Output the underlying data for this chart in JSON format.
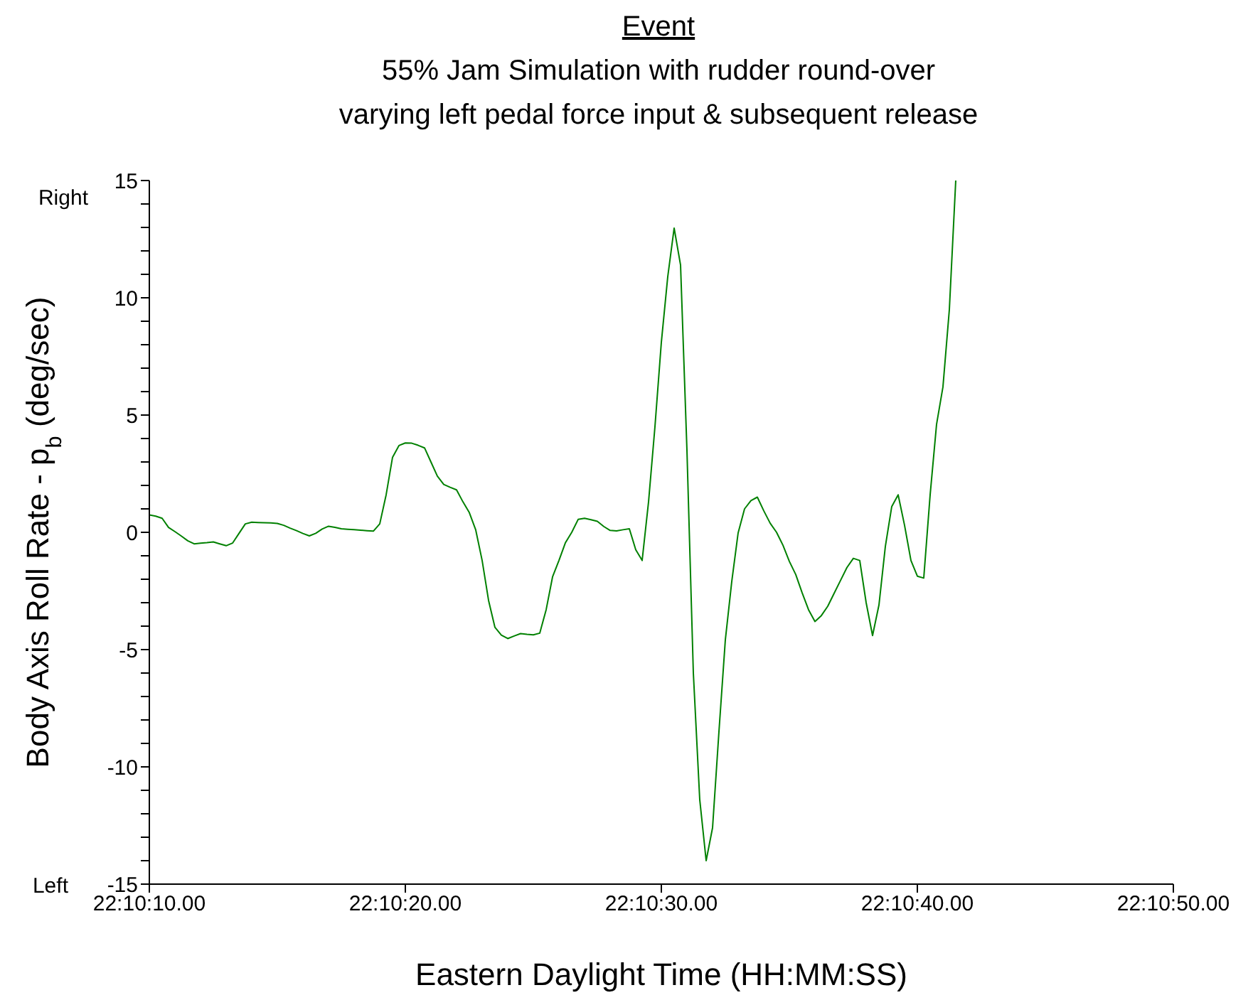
{
  "chart_data": {
    "type": "line",
    "title": "Event",
    "subtitle": "55% Jam Simulation with rudder round-over\nvarying left pedal force input & subsequent release",
    "xlabel": "Eastern Daylight Time (HH:MM:SS)",
    "ylabel": "Body Axis Roll Rate - p$_{b}$ (deg/sec)",
    "annotations": [
      "Right",
      "Left"
    ],
    "categories": [
      "22:10:10.00",
      null,
      null,
      null,
      null,
      null,
      null,
      null,
      null,
      null,
      null,
      null,
      null,
      null,
      null,
      null,
      null,
      null,
      null,
      null,
      null,
      null,
      null,
      null,
      null,
      null,
      null,
      null,
      null,
      null,
      null,
      null,
      null,
      null,
      null,
      null,
      null,
      null,
      null,
      null,
      "22:10:20.00",
      null,
      null,
      null,
      null,
      null,
      null,
      null,
      null,
      null,
      null,
      null,
      null,
      null,
      null,
      null,
      null,
      null,
      null,
      null,
      null,
      null,
      null,
      null,
      null,
      null,
      null,
      null,
      null,
      null,
      null,
      null,
      null,
      null,
      null,
      null,
      null,
      null,
      null,
      null,
      "22:10:30.00",
      null,
      null,
      null,
      null,
      null,
      null,
      null,
      null,
      null,
      null,
      null,
      null,
      null,
      null,
      null,
      null,
      null,
      null,
      null,
      null,
      null,
      null,
      null,
      null,
      null,
      null,
      null,
      null,
      null,
      null,
      null,
      null,
      null,
      null,
      null,
      null,
      null,
      null,
      null,
      "22:10:40.00",
      null,
      null,
      null,
      null,
      null,
      null,
      null,
      null,
      null,
      null,
      null,
      null,
      null,
      null,
      null,
      null,
      null,
      null,
      null,
      null,
      null,
      null,
      null,
      null,
      null,
      null,
      null,
      null,
      null,
      null,
      null,
      null,
      null,
      null,
      null,
      null,
      null,
      null,
      null,
      "22:10:50.00"
    ],
    "series": [
      {
        "color": "#008000",
        "values": [
          0.74,
          0.69,
          0.6,
          0.21,
          0.03,
          -0.16,
          -0.36,
          -0.49,
          -0.46,
          -0.44,
          -0.41,
          -0.49,
          -0.57,
          -0.46,
          -0.05,
          0.36,
          0.43,
          0.42,
          0.41,
          0.4,
          0.38,
          0.3,
          0.18,
          0.07,
          -0.05,
          -0.15,
          -0.04,
          0.14,
          0.26,
          0.21,
          0.15,
          0.13,
          0.11,
          0.09,
          0.07,
          0.05,
          0.36,
          1.6,
          3.2,
          3.7,
          3.81,
          3.8,
          3.71,
          3.6,
          3.0,
          2.4,
          2.04,
          1.92,
          1.81,
          1.3,
          0.84,
          0.1,
          -1.2,
          -2.9,
          -4.05,
          -4.38,
          -4.53,
          -4.42,
          -4.32,
          -4.35,
          -4.37,
          -4.3,
          -3.3,
          -1.9,
          -1.2,
          -0.45,
          0.0,
          0.55,
          0.6,
          0.54,
          0.47,
          0.25,
          0.08,
          0.06,
          0.11,
          0.15,
          -0.74,
          -1.2,
          1.3,
          4.5,
          8.1,
          10.9,
          12.97,
          11.4,
          3.5,
          -6.0,
          -11.4,
          -14.0,
          -12.6,
          -8.5,
          -4.58,
          -2.1,
          -0.02,
          1.0,
          1.35,
          1.5,
          0.92,
          0.39,
          0.0,
          -0.55,
          -1.24,
          -1.8,
          -2.58,
          -3.3,
          -3.8,
          -3.55,
          -3.15,
          -2.6,
          -2.05,
          -1.5,
          -1.11,
          -1.2,
          -3.0,
          -4.4,
          -3.1,
          -0.6,
          1.1,
          1.6,
          0.3,
          -1.2,
          -1.87,
          -1.95,
          1.6,
          4.6,
          6.2,
          9.5,
          15,
          null,
          null,
          null,
          null,
          null,
          null,
          null,
          null,
          null,
          null,
          null,
          null,
          null,
          null,
          null,
          null,
          null,
          null,
          null,
          null,
          null,
          null,
          null,
          null,
          null,
          null,
          null,
          null,
          null,
          null,
          null,
          null,
          null,
          null
        ]
      }
    ],
    "ylim": [
      -15,
      15
    ],
    "yticks": [
      15,
      {
        "value": 14,
        "label": null
      },
      {
        "value": 13,
        "label": null
      },
      {
        "value": 12,
        "label": null
      },
      {
        "value": 11,
        "label": null
      },
      10,
      {
        "value": 9,
        "label": null
      },
      {
        "value": 8,
        "label": null
      },
      {
        "value": 7,
        "label": null
      },
      {
        "value": 6,
        "label": null
      },
      5,
      {
        "value": 4,
        "label": null
      },
      {
        "value": 3,
        "label": null
      },
      {
        "value": 2,
        "label": null
      },
      {
        "value": 1,
        "label": null
      },
      0,
      {
        "value": -1,
        "label": null
      },
      {
        "value": -2,
        "label": null
      },
      {
        "value": -3,
        "label": null
      },
      {
        "value": -4,
        "label": null
      },
      -5,
      {
        "value": -6,
        "label": null
      },
      {
        "value": -7,
        "label": null
      },
      {
        "value": -8,
        "label": null
      },
      {
        "value": -9,
        "label": null
      },
      -10,
      {
        "value": -11,
        "label": null
      },
      {
        "value": -12,
        "label": null
      },
      {
        "value": -13,
        "label": null
      },
      {
        "value": -14,
        "label": null
      },
      -15
    ],
    "grid": false,
    "legend": false,
    "marker": "none",
    "line_style": "solid"
  }
}
